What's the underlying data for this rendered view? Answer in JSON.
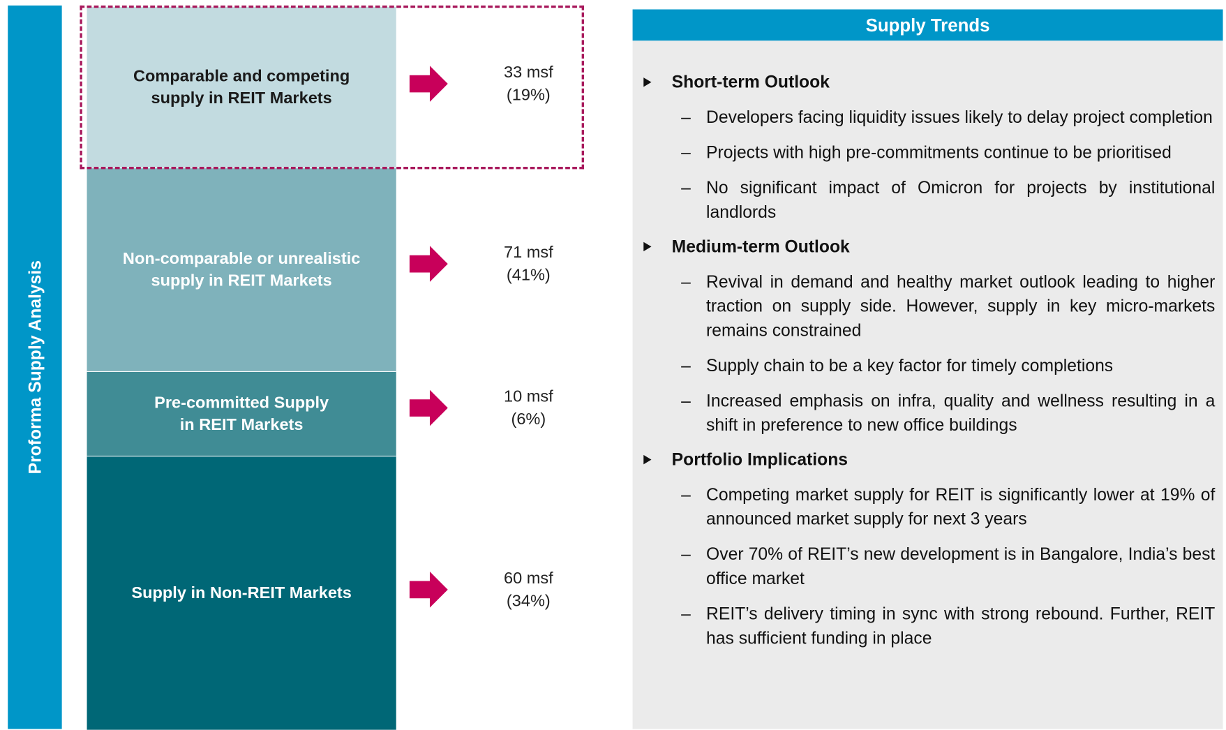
{
  "side_label": "Proforma Supply Analysis",
  "boxes": [
    {
      "label_lines": [
        "Comparable and competing",
        "supply in REIT Markets"
      ],
      "value": "33 msf",
      "share": "(19%)"
    },
    {
      "label_lines": [
        "Non-comparable or unrealistic",
        "supply in REIT Markets"
      ],
      "value": "71 msf",
      "share": "(41%)"
    },
    {
      "label_lines": [
        "Pre-committed Supply",
        "in REIT Markets"
      ],
      "value": "10 msf",
      "share": "(6%)"
    },
    {
      "label_lines": [
        "Supply in Non-REIT Markets"
      ],
      "value": "60 msf",
      "share": "(34%)"
    }
  ],
  "panel": {
    "title": "Supply Trends",
    "sections": [
      {
        "heading": "Short-term Outlook",
        "items": [
          "Developers facing liquidity issues likely to delay project completion",
          "Projects with high pre-commitments continue to be prioritised",
          "No significant impact of Omicron for projects by institutional landlords"
        ]
      },
      {
        "heading": "Medium-term Outlook",
        "items": [
          "Revival in demand and healthy market outlook leading to higher traction on supply side. However, supply in key micro-markets remains constrained",
          "Supply chain to be a key factor for timely completions",
          "Increased emphasis on infra, quality and wellness resulting in a shift in preference to new office buildings"
        ]
      },
      {
        "heading": "Portfolio Implications",
        "items": [
          "Competing market supply for REIT is significantly lower at 19% of announced market supply for next 3 years",
          "Over 70% of REIT’s new development is in Bangalore, India’s best office market",
          "REIT’s delivery timing in sync with strong rebound. Further, REIT has sufficient funding in place"
        ]
      }
    ]
  }
}
